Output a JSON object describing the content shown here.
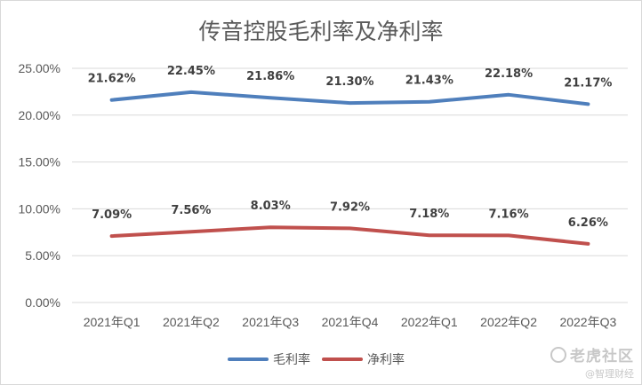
{
  "chart_data": {
    "type": "line",
    "title": "传音控股毛利率及净利率",
    "categories": [
      "2021年Q1",
      "2021年Q2",
      "2021年Q3",
      "2021年Q4",
      "2022年Q1",
      "2022年Q2",
      "2022年Q3"
    ],
    "y_ticks": [
      "0.00%",
      "5.00%",
      "10.00%",
      "15.00%",
      "20.00%",
      "25.00%"
    ],
    "ylim": [
      0,
      25
    ],
    "grid": true,
    "legend_position": "bottom",
    "series": [
      {
        "name": "毛利率",
        "color": "#4f7fbc",
        "values": [
          21.62,
          22.45,
          21.86,
          21.3,
          21.43,
          22.18,
          21.17
        ],
        "labels": [
          "21.62%",
          "22.45%",
          "21.86%",
          "21.30%",
          "21.43%",
          "22.18%",
          "21.17%"
        ]
      },
      {
        "name": "净利率",
        "color": "#c0504d",
        "values": [
          7.09,
          7.56,
          8.03,
          7.92,
          7.18,
          7.16,
          6.26
        ],
        "labels": [
          "7.09%",
          "7.56%",
          "8.03%",
          "7.92%",
          "7.18%",
          "7.16%",
          "6.26%"
        ]
      }
    ]
  },
  "watermark": {
    "main": "老虎社区",
    "sub": "@智理财经"
  }
}
